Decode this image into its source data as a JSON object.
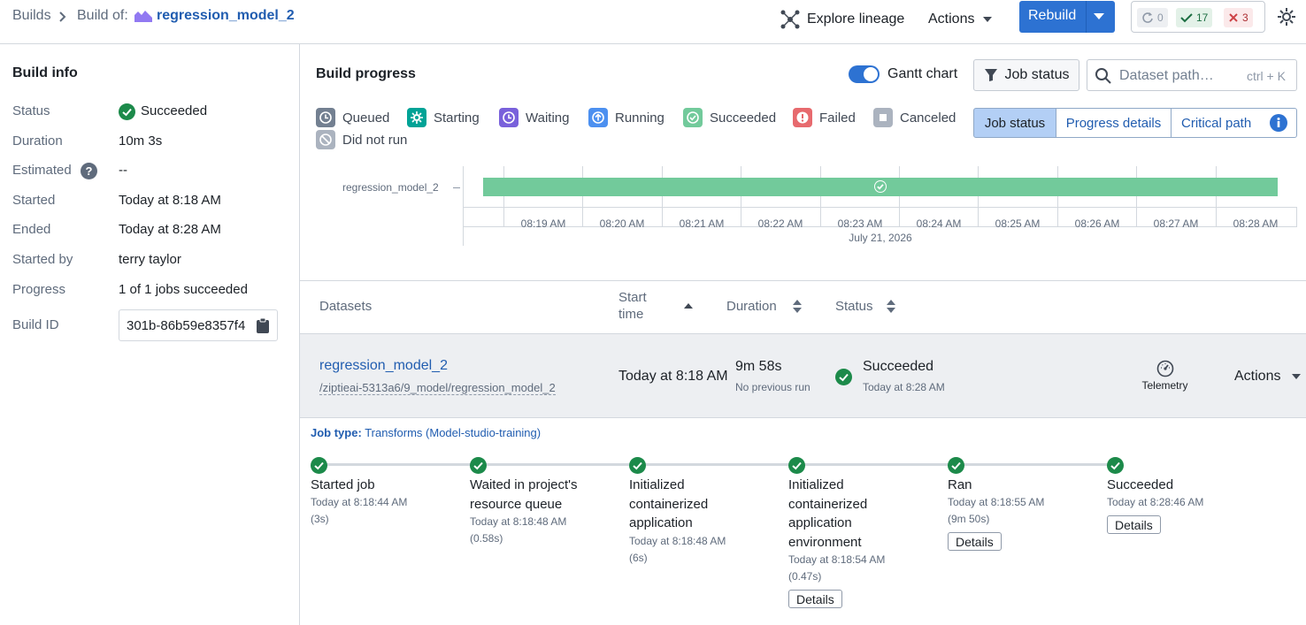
{
  "topbar": {
    "crumb_builds": "Builds",
    "crumb_build_of": "Build of:",
    "dataset_name": "regression_model_2",
    "explore_lineage": "Explore lineage",
    "actions": "Actions",
    "rebuild": "Rebuild",
    "count_running": "0",
    "count_succeeded": "17",
    "count_failed": "3"
  },
  "build_info": {
    "title": "Build info",
    "rows": [
      {
        "label": "Status",
        "value": "Succeeded"
      },
      {
        "label": "Duration",
        "value": "10m 3s"
      },
      {
        "label": "Estimated",
        "value": "--"
      },
      {
        "label": "Started",
        "value": "Today at 8:18 AM"
      },
      {
        "label": "Ended",
        "value": "Today at 8:28 AM"
      },
      {
        "label": "Started by",
        "value": "terry taylor"
      },
      {
        "label": "Progress",
        "value": "1 of 1 jobs succeeded"
      },
      {
        "label": "Build ID",
        "value": "301b-86b59e8357f4"
      }
    ]
  },
  "progress": {
    "title": "Build progress",
    "gantt_label": "Gantt chart",
    "job_status_btn": "Job status",
    "search_placeholder": "Dataset path…",
    "search_hint": "ctrl + K",
    "legend": [
      "Queued",
      "Starting",
      "Waiting",
      "Running",
      "Succeeded",
      "Failed",
      "Canceled",
      "Did not run"
    ],
    "tabs": [
      "Job status",
      "Progress details",
      "Critical path"
    ],
    "gantt_row": "regression_model_2",
    "ticks": [
      "08:19 AM",
      "08:20 AM",
      "08:21 AM",
      "08:22 AM",
      "08:23 AM",
      "08:24 AM",
      "08:25 AM",
      "08:26 AM",
      "08:27 AM",
      "08:28 AM"
    ],
    "date": "July 21, 2026"
  },
  "table": {
    "headers": {
      "datasets": "Datasets",
      "start_time_1": "Start",
      "start_time_2": "time",
      "duration": "Duration",
      "status": "Status"
    },
    "row": {
      "name": "regression_model_2",
      "path": "/ziptieai-5313a6/9_model/regression_model_2",
      "start": "Today at 8:18 AM",
      "duration": "9m 58s",
      "duration_sub": "No previous run",
      "status": "Succeeded",
      "status_sub": "Today at 8:28 AM",
      "telemetry": "Telemetry",
      "actions": "Actions"
    }
  },
  "job": {
    "type_label": "Job type:",
    "type_value": "Transforms (Model-studio-training)",
    "steps": [
      {
        "title": "Started job",
        "time": "Today at 8:18:44 AM",
        "dur": "(3s)"
      },
      {
        "title": "Waited in project's resource queue",
        "time": "Today at 8:18:48 AM",
        "dur": "(0.58s)"
      },
      {
        "title": "Initialized containerized application",
        "time": "Today at 8:18:48 AM",
        "dur": "(6s)"
      },
      {
        "title": "Initialized containerized application environment",
        "time": "Today at 8:18:54 AM",
        "dur": "(0.47s)",
        "btn": "Details"
      },
      {
        "title": "Ran",
        "time": "Today at 8:18:55 AM",
        "dur": "(9m 50s)",
        "btn": "Details"
      },
      {
        "title": "Succeeded",
        "time": "Today at 8:28:46 AM",
        "btn": "Details"
      }
    ]
  }
}
